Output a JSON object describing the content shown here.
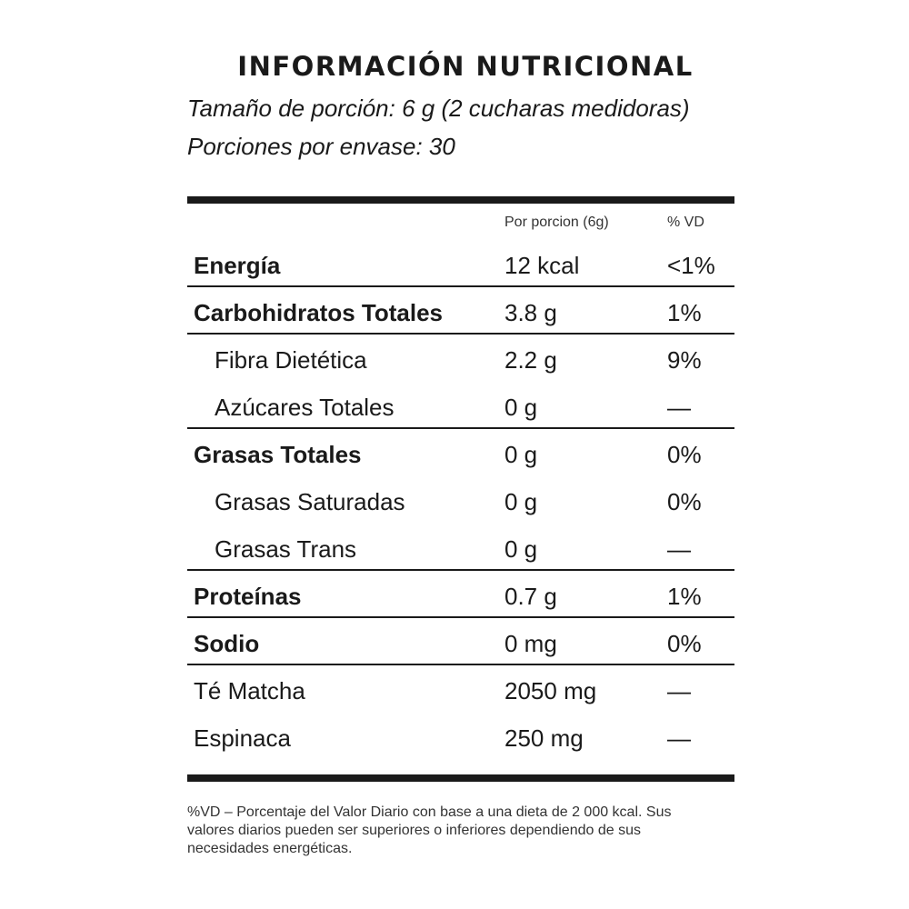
{
  "title": "INFORMACIÓN NUTRICIONAL",
  "serving_size": "Tamaño de porción: 6 g (2 cucharas medidoras)",
  "servings_per_container": "Porciones por envase: 30",
  "columns": {
    "per_serving": "Por porcion (6g)",
    "dv": "% VD"
  },
  "rows": [
    {
      "name": "Energía",
      "amount": "12 kcal",
      "dv": "<1%"
    },
    {
      "name": "Carbohidratos Totales",
      "amount": "3.8 g",
      "dv": "1%"
    },
    {
      "name": "Fibra Dietética",
      "amount": "2.2 g",
      "dv": "9%"
    },
    {
      "name": "Azúcares Totales",
      "amount": "0 g",
      "dv": "—"
    },
    {
      "name": "Grasas Totales",
      "amount": "0 g",
      "dv": "0%"
    },
    {
      "name": "Grasas Saturadas",
      "amount": "0 g",
      "dv": "0%"
    },
    {
      "name": "Grasas Trans",
      "amount": "0 g",
      "dv": "—"
    },
    {
      "name": "Proteínas",
      "amount": "0.7 g",
      "dv": "1%"
    },
    {
      "name": "Sodio",
      "amount": "0 mg",
      "dv": "0%"
    },
    {
      "name": "Té Matcha",
      "amount": "2050 mg",
      "dv": "—"
    },
    {
      "name": "Espinaca",
      "amount": "250 mg",
      "dv": "—"
    }
  ],
  "footnote": "%VD – Porcentaje del Valor Diario con base a una dieta de 2 000 kcal. Sus valores diarios pueden ser superiores o inferiores dependiendo de sus necesidades energéticas."
}
